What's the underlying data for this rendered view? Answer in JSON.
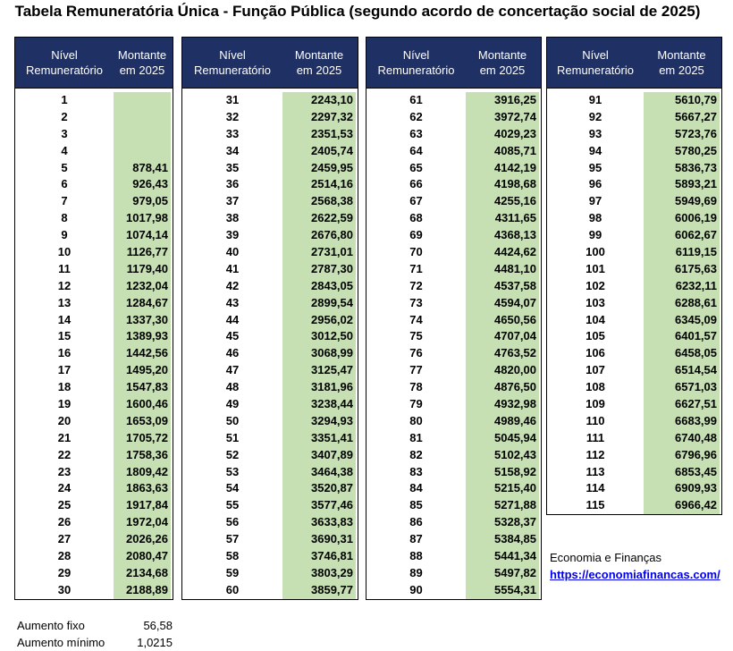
{
  "title": "Tabela Remuneratória Única - Função Pública (segundo acordo de concertação social de 2025)",
  "header": {
    "level": "Nível\nRemuneratório",
    "amount": "Montante\nem 2025"
  },
  "tables": [
    {
      "rows": [
        [
          "1",
          ""
        ],
        [
          "2",
          ""
        ],
        [
          "3",
          ""
        ],
        [
          "4",
          ""
        ],
        [
          "5",
          "878,41"
        ],
        [
          "6",
          "926,43"
        ],
        [
          "7",
          "979,05"
        ],
        [
          "8",
          "1017,98"
        ],
        [
          "9",
          "1074,14"
        ],
        [
          "10",
          "1126,77"
        ],
        [
          "11",
          "1179,40"
        ],
        [
          "12",
          "1232,04"
        ],
        [
          "13",
          "1284,67"
        ],
        [
          "14",
          "1337,30"
        ],
        [
          "15",
          "1389,93"
        ],
        [
          "16",
          "1442,56"
        ],
        [
          "17",
          "1495,20"
        ],
        [
          "18",
          "1547,83"
        ],
        [
          "19",
          "1600,46"
        ],
        [
          "20",
          "1653,09"
        ],
        [
          "21",
          "1705,72"
        ],
        [
          "22",
          "1758,36"
        ],
        [
          "23",
          "1809,42"
        ],
        [
          "24",
          "1863,63"
        ],
        [
          "25",
          "1917,84"
        ],
        [
          "26",
          "1972,04"
        ],
        [
          "27",
          "2026,26"
        ],
        [
          "28",
          "2080,47"
        ],
        [
          "29",
          "2134,68"
        ],
        [
          "30",
          "2188,89"
        ]
      ]
    },
    {
      "rows": [
        [
          "31",
          "2243,10"
        ],
        [
          "32",
          "2297,32"
        ],
        [
          "33",
          "2351,53"
        ],
        [
          "34",
          "2405,74"
        ],
        [
          "35",
          "2459,95"
        ],
        [
          "36",
          "2514,16"
        ],
        [
          "37",
          "2568,38"
        ],
        [
          "38",
          "2622,59"
        ],
        [
          "39",
          "2676,80"
        ],
        [
          "40",
          "2731,01"
        ],
        [
          "41",
          "2787,30"
        ],
        [
          "42",
          "2843,05"
        ],
        [
          "43",
          "2899,54"
        ],
        [
          "44",
          "2956,02"
        ],
        [
          "45",
          "3012,50"
        ],
        [
          "46",
          "3068,99"
        ],
        [
          "47",
          "3125,47"
        ],
        [
          "48",
          "3181,96"
        ],
        [
          "49",
          "3238,44"
        ],
        [
          "50",
          "3294,93"
        ],
        [
          "51",
          "3351,41"
        ],
        [
          "52",
          "3407,89"
        ],
        [
          "53",
          "3464,38"
        ],
        [
          "54",
          "3520,87"
        ],
        [
          "55",
          "3577,46"
        ],
        [
          "56",
          "3633,83"
        ],
        [
          "57",
          "3690,31"
        ],
        [
          "58",
          "3746,81"
        ],
        [
          "59",
          "3803,29"
        ],
        [
          "60",
          "3859,77"
        ]
      ]
    },
    {
      "rows": [
        [
          "61",
          "3916,25"
        ],
        [
          "62",
          "3972,74"
        ],
        [
          "63",
          "4029,23"
        ],
        [
          "64",
          "4085,71"
        ],
        [
          "65",
          "4142,19"
        ],
        [
          "66",
          "4198,68"
        ],
        [
          "67",
          "4255,16"
        ],
        [
          "68",
          "4311,65"
        ],
        [
          "69",
          "4368,13"
        ],
        [
          "70",
          "4424,62"
        ],
        [
          "71",
          "4481,10"
        ],
        [
          "72",
          "4537,58"
        ],
        [
          "73",
          "4594,07"
        ],
        [
          "74",
          "4650,56"
        ],
        [
          "75",
          "4707,04"
        ],
        [
          "76",
          "4763,52"
        ],
        [
          "77",
          "4820,00"
        ],
        [
          "78",
          "4876,50"
        ],
        [
          "79",
          "4932,98"
        ],
        [
          "80",
          "4989,46"
        ],
        [
          "81",
          "5045,94"
        ],
        [
          "82",
          "5102,43"
        ],
        [
          "83",
          "5158,92"
        ],
        [
          "84",
          "5215,40"
        ],
        [
          "85",
          "5271,88"
        ],
        [
          "86",
          "5328,37"
        ],
        [
          "87",
          "5384,85"
        ],
        [
          "88",
          "5441,34"
        ],
        [
          "89",
          "5497,82"
        ],
        [
          "90",
          "5554,31"
        ]
      ]
    },
    {
      "rows": [
        [
          "91",
          "5610,79"
        ],
        [
          "92",
          "5667,27"
        ],
        [
          "93",
          "5723,76"
        ],
        [
          "94",
          "5780,25"
        ],
        [
          "95",
          "5836,73"
        ],
        [
          "96",
          "5893,21"
        ],
        [
          "97",
          "5949,69"
        ],
        [
          "98",
          "6006,19"
        ],
        [
          "99",
          "6062,67"
        ],
        [
          "100",
          "6119,15"
        ],
        [
          "101",
          "6175,63"
        ],
        [
          "102",
          "6232,11"
        ],
        [
          "103",
          "6288,61"
        ],
        [
          "104",
          "6345,09"
        ],
        [
          "105",
          "6401,57"
        ],
        [
          "106",
          "6458,05"
        ],
        [
          "107",
          "6514,54"
        ],
        [
          "108",
          "6571,03"
        ],
        [
          "109",
          "6627,51"
        ],
        [
          "110",
          "6683,99"
        ],
        [
          "111",
          "6740,48"
        ],
        [
          "112",
          "6796,96"
        ],
        [
          "113",
          "6853,45"
        ],
        [
          "114",
          "6909,93"
        ],
        [
          "115",
          "6966,42"
        ]
      ]
    }
  ],
  "source": {
    "name": "Economia e Finanças",
    "link": "https://economiafinancas.com/"
  },
  "notes": [
    {
      "label": "Aumento fixo",
      "value": "56,58"
    },
    {
      "label": "Aumento mínimo",
      "value": "1,0215"
    }
  ],
  "colors": {
    "header_bg": "#1f3064",
    "amount_bg": "#c6e0b4",
    "link": "#0000ee"
  }
}
